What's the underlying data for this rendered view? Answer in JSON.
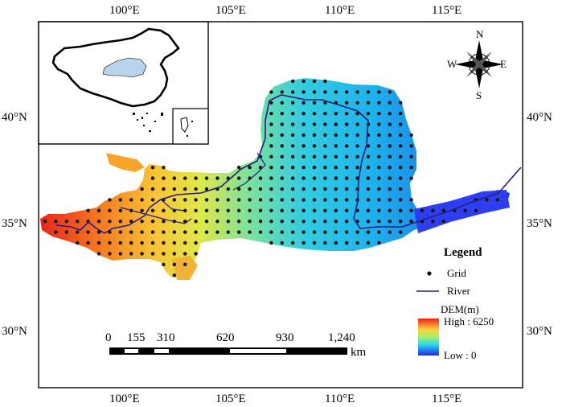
{
  "axes": {
    "top_ticks": [
      "100°E",
      "105°E",
      "110°E",
      "115°E"
    ],
    "bottom_ticks": [
      "100°E",
      "105°E",
      "110°E",
      "115°E"
    ],
    "left_ticks": [
      "40°N",
      "35°N",
      "30°N"
    ],
    "right_ticks": [
      "40°N",
      "35°N",
      "30°N"
    ]
  },
  "compass": {
    "north": "N",
    "south": "S",
    "east": "E",
    "west": "W"
  },
  "legend": {
    "title": "Legend",
    "grid_label": "Grid",
    "river_label": "River",
    "dem_title": "DEM(m)",
    "high_label": "High : 6250",
    "low_label": "Low : 0"
  },
  "scale_bar": {
    "ticks": [
      "0",
      "155",
      "310",
      "620",
      "930",
      "1,240"
    ],
    "unit": "km"
  },
  "colors": {
    "grid_point": "#111111",
    "river": "#2a1d7a",
    "dem_high": "#e8231a",
    "dem_mid": "#ffe14a",
    "dem_low": "#1a2bf0",
    "inset_highlight": "#b8d4ec"
  }
}
